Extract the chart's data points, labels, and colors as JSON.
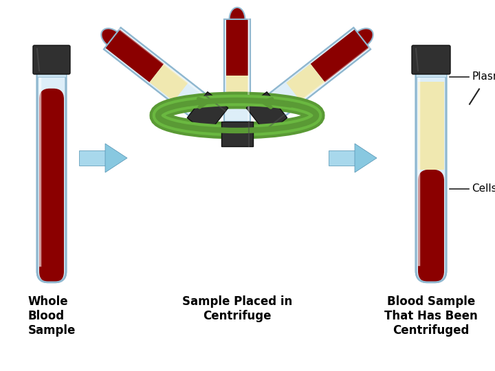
{
  "background_color": "#ffffff",
  "labels": {
    "whole_blood": "Whole\nBlood\nSample",
    "centrifuge": "Sample Placed in\nCentrifuge",
    "centrifuged": "Blood Sample\nThat Has Been\nCentrifuged",
    "plasma": "Plasma",
    "cells": "Cells"
  },
  "label_fontsize": 12,
  "annotation_fontsize": 11,
  "colors": {
    "blood_red": "#8B0000",
    "blood_red2": "#aa1100",
    "plasma_yellow": "#f0e8b0",
    "plasma_yellow2": "#e8dda0",
    "tube_glass": "#ddeef8",
    "tube_glass2": "#c8e2f0",
    "tube_glass_edge": "#90b8d0",
    "tube_glass_highlight": "#eef8ff",
    "tube_cap": "#303030",
    "tube_cap2": "#505050",
    "arrow_blue": "#88c8e0",
    "arrow_blue2": "#a8d8ec",
    "arrow_blue_dark": "#5090b0",
    "centrifuge_ring": "#5a9a35",
    "centrifuge_ring2": "#6ab840",
    "line_color": "#222222",
    "buffy_layer": "#c8a878"
  }
}
